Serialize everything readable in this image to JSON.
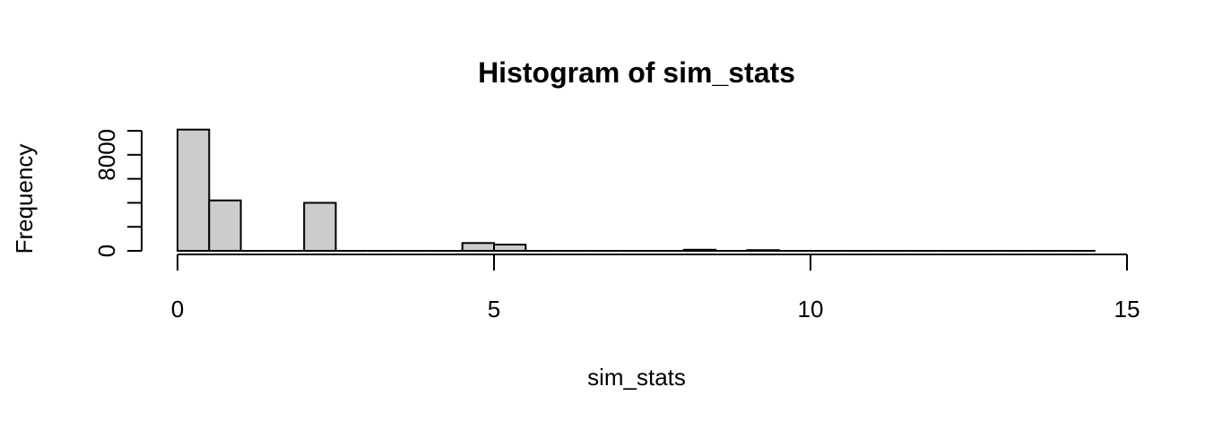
{
  "chart_data": {
    "type": "bar",
    "title": "Histogram of sim_stats",
    "xlabel": "sim_stats",
    "ylabel": "Frequency",
    "xlim": [
      0,
      15
    ],
    "ylim": [
      0,
      10000
    ],
    "x_ticks": [
      0,
      5,
      10,
      15
    ],
    "y_ticks": [
      0,
      4000,
      8000
    ],
    "y_tick_labels_shown": [
      "0",
      "8000"
    ],
    "bar_color": "#cccccc",
    "bin_width": 0.5,
    "bins": [
      {
        "start": 0.0,
        "end": 0.5,
        "count": 10100
      },
      {
        "start": 0.5,
        "end": 1.0,
        "count": 4200
      },
      {
        "start": 1.0,
        "end": 1.5,
        "count": 0
      },
      {
        "start": 1.5,
        "end": 2.0,
        "count": 0
      },
      {
        "start": 2.0,
        "end": 2.5,
        "count": 4000
      },
      {
        "start": 2.5,
        "end": 3.0,
        "count": 0
      },
      {
        "start": 3.0,
        "end": 3.5,
        "count": 0
      },
      {
        "start": 3.5,
        "end": 4.0,
        "count": 0
      },
      {
        "start": 4.0,
        "end": 4.5,
        "count": 0
      },
      {
        "start": 4.5,
        "end": 5.0,
        "count": 650
      },
      {
        "start": 5.0,
        "end": 5.5,
        "count": 520
      },
      {
        "start": 5.5,
        "end": 6.0,
        "count": 0
      },
      {
        "start": 6.0,
        "end": 6.5,
        "count": 0
      },
      {
        "start": 6.5,
        "end": 7.0,
        "count": 0
      },
      {
        "start": 7.0,
        "end": 7.5,
        "count": 0
      },
      {
        "start": 7.5,
        "end": 8.0,
        "count": 0
      },
      {
        "start": 8.0,
        "end": 8.5,
        "count": 90
      },
      {
        "start": 8.5,
        "end": 9.0,
        "count": 0
      },
      {
        "start": 9.0,
        "end": 9.5,
        "count": 60
      },
      {
        "start": 9.5,
        "end": 10.0,
        "count": 0
      },
      {
        "start": 10.0,
        "end": 10.5,
        "count": 0
      },
      {
        "start": 10.5,
        "end": 11.0,
        "count": 0
      },
      {
        "start": 11.0,
        "end": 11.5,
        "count": 0
      },
      {
        "start": 11.5,
        "end": 12.0,
        "count": 0
      },
      {
        "start": 12.0,
        "end": 12.5,
        "count": 0
      },
      {
        "start": 12.5,
        "end": 13.0,
        "count": 0
      },
      {
        "start": 13.0,
        "end": 13.5,
        "count": 0
      },
      {
        "start": 13.5,
        "end": 14.0,
        "count": 0
      },
      {
        "start": 14.0,
        "end": 14.5,
        "count": 0
      }
    ]
  }
}
